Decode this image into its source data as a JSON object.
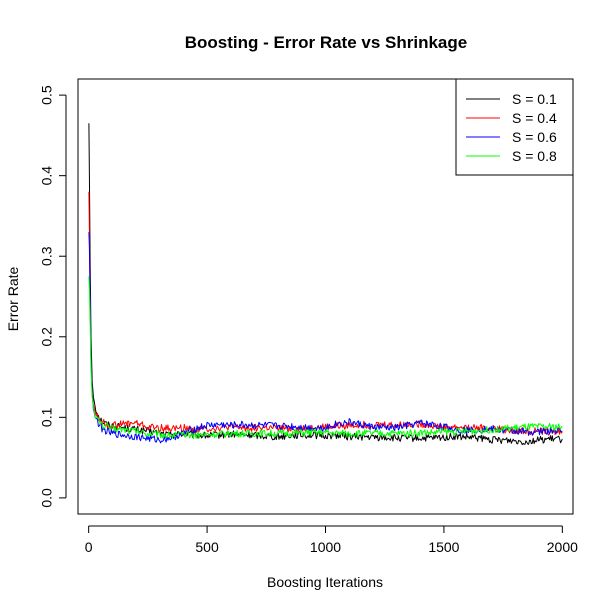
{
  "chart_data": {
    "type": "line",
    "title": "Boosting - Error Rate vs Shrinkage",
    "xlabel": "Boosting Iterations",
    "ylabel": "Error Rate",
    "xlim": [
      -45,
      2045
    ],
    "ylim": [
      -0.02,
      0.52
    ],
    "x_ticks": [
      0,
      500,
      1000,
      1500,
      2000
    ],
    "x_tick_labels": [
      "0",
      "500",
      "1000",
      "1500",
      "2000"
    ],
    "y_ticks": [
      0.0,
      0.1,
      0.2,
      0.3,
      0.4,
      0.5
    ],
    "y_tick_labels": [
      "0.0",
      "0.1",
      "0.2",
      "0.3",
      "0.4",
      "0.5"
    ],
    "grid": false,
    "legend_position": "top-right",
    "series": [
      {
        "name": "S = 0.1",
        "color": "#000000",
        "points": [
          [
            1,
            0.465
          ],
          [
            3,
            0.4
          ],
          [
            6,
            0.3
          ],
          [
            10,
            0.2
          ],
          [
            15,
            0.145
          ],
          [
            20,
            0.125
          ],
          [
            30,
            0.11
          ],
          [
            45,
            0.1
          ],
          [
            60,
            0.094
          ],
          [
            80,
            0.091
          ],
          [
            100,
            0.09
          ],
          [
            150,
            0.087
          ],
          [
            200,
            0.085
          ],
          [
            250,
            0.083
          ],
          [
            300,
            0.08
          ],
          [
            350,
            0.078
          ],
          [
            400,
            0.08
          ],
          [
            450,
            0.078
          ],
          [
            500,
            0.077
          ],
          [
            550,
            0.078
          ],
          [
            600,
            0.079
          ],
          [
            650,
            0.078
          ],
          [
            700,
            0.078
          ],
          [
            750,
            0.077
          ],
          [
            800,
            0.076
          ],
          [
            850,
            0.078
          ],
          [
            900,
            0.078
          ],
          [
            950,
            0.078
          ],
          [
            1000,
            0.077
          ],
          [
            1050,
            0.078
          ],
          [
            1100,
            0.076
          ],
          [
            1150,
            0.076
          ],
          [
            1200,
            0.075
          ],
          [
            1250,
            0.075
          ],
          [
            1300,
            0.074
          ],
          [
            1350,
            0.074
          ],
          [
            1400,
            0.074
          ],
          [
            1450,
            0.074
          ],
          [
            1500,
            0.075
          ],
          [
            1550,
            0.076
          ],
          [
            1600,
            0.075
          ],
          [
            1650,
            0.074
          ],
          [
            1700,
            0.072
          ],
          [
            1750,
            0.072
          ],
          [
            1800,
            0.071
          ],
          [
            1850,
            0.07
          ],
          [
            1900,
            0.072
          ],
          [
            1950,
            0.073
          ],
          [
            2000,
            0.073
          ]
        ]
      },
      {
        "name": "S = 0.4",
        "color": "#ff0000",
        "points": [
          [
            1,
            0.38
          ],
          [
            3,
            0.33
          ],
          [
            6,
            0.25
          ],
          [
            10,
            0.17
          ],
          [
            15,
            0.13
          ],
          [
            20,
            0.115
          ],
          [
            30,
            0.105
          ],
          [
            45,
            0.097
          ],
          [
            60,
            0.094
          ],
          [
            80,
            0.09
          ],
          [
            100,
            0.09
          ],
          [
            150,
            0.092
          ],
          [
            200,
            0.093
          ],
          [
            250,
            0.088
          ],
          [
            300,
            0.087
          ],
          [
            350,
            0.086
          ],
          [
            400,
            0.087
          ],
          [
            450,
            0.085
          ],
          [
            500,
            0.086
          ],
          [
            550,
            0.087
          ],
          [
            600,
            0.088
          ],
          [
            650,
            0.087
          ],
          [
            700,
            0.087
          ],
          [
            750,
            0.087
          ],
          [
            800,
            0.086
          ],
          [
            850,
            0.086
          ],
          [
            900,
            0.086
          ],
          [
            950,
            0.087
          ],
          [
            1000,
            0.088
          ],
          [
            1050,
            0.089
          ],
          [
            1100,
            0.09
          ],
          [
            1150,
            0.091
          ],
          [
            1200,
            0.09
          ],
          [
            1250,
            0.091
          ],
          [
            1300,
            0.09
          ],
          [
            1350,
            0.091
          ],
          [
            1400,
            0.092
          ],
          [
            1450,
            0.09
          ],
          [
            1500,
            0.088
          ],
          [
            1550,
            0.088
          ],
          [
            1600,
            0.087
          ],
          [
            1650,
            0.087
          ],
          [
            1700,
            0.086
          ],
          [
            1750,
            0.085
          ],
          [
            1800,
            0.084
          ],
          [
            1850,
            0.083
          ],
          [
            1900,
            0.083
          ],
          [
            1950,
            0.082
          ],
          [
            2000,
            0.082
          ]
        ]
      },
      {
        "name": "S = 0.6",
        "color": "#0000ff",
        "points": [
          [
            1,
            0.33
          ],
          [
            3,
            0.31
          ],
          [
            6,
            0.25
          ],
          [
            10,
            0.17
          ],
          [
            15,
            0.13
          ],
          [
            20,
            0.11
          ],
          [
            30,
            0.1
          ],
          [
            45,
            0.09
          ],
          [
            60,
            0.085
          ],
          [
            80,
            0.082
          ],
          [
            100,
            0.08
          ],
          [
            150,
            0.078
          ],
          [
            200,
            0.076
          ],
          [
            250,
            0.074
          ],
          [
            300,
            0.072
          ],
          [
            350,
            0.075
          ],
          [
            400,
            0.08
          ],
          [
            450,
            0.086
          ],
          [
            500,
            0.09
          ],
          [
            550,
            0.091
          ],
          [
            600,
            0.09
          ],
          [
            650,
            0.091
          ],
          [
            700,
            0.09
          ],
          [
            750,
            0.09
          ],
          [
            800,
            0.089
          ],
          [
            850,
            0.089
          ],
          [
            900,
            0.088
          ],
          [
            950,
            0.087
          ],
          [
            1000,
            0.087
          ],
          [
            1050,
            0.092
          ],
          [
            1100,
            0.094
          ],
          [
            1150,
            0.091
          ],
          [
            1200,
            0.088
          ],
          [
            1250,
            0.087
          ],
          [
            1300,
            0.087
          ],
          [
            1350,
            0.09
          ],
          [
            1400,
            0.093
          ],
          [
            1450,
            0.091
          ],
          [
            1500,
            0.088
          ],
          [
            1550,
            0.085
          ],
          [
            1600,
            0.084
          ],
          [
            1650,
            0.085
          ],
          [
            1700,
            0.085
          ],
          [
            1750,
            0.084
          ],
          [
            1800,
            0.083
          ],
          [
            1850,
            0.082
          ],
          [
            1900,
            0.082
          ],
          [
            1950,
            0.083
          ],
          [
            2000,
            0.083
          ]
        ]
      },
      {
        "name": "S = 0.8",
        "color": "#00ff00",
        "points": [
          [
            1,
            0.275
          ],
          [
            3,
            0.26
          ],
          [
            6,
            0.22
          ],
          [
            10,
            0.16
          ],
          [
            15,
            0.125
          ],
          [
            20,
            0.112
          ],
          [
            30,
            0.1
          ],
          [
            45,
            0.095
          ],
          [
            60,
            0.09
          ],
          [
            80,
            0.088
          ],
          [
            100,
            0.086
          ],
          [
            150,
            0.085
          ],
          [
            200,
            0.083
          ],
          [
            250,
            0.08
          ],
          [
            300,
            0.079
          ],
          [
            350,
            0.078
          ],
          [
            400,
            0.078
          ],
          [
            450,
            0.078
          ],
          [
            500,
            0.079
          ],
          [
            550,
            0.079
          ],
          [
            600,
            0.08
          ],
          [
            650,
            0.08
          ],
          [
            700,
            0.08
          ],
          [
            750,
            0.08
          ],
          [
            800,
            0.08
          ],
          [
            850,
            0.08
          ],
          [
            900,
            0.081
          ],
          [
            950,
            0.081
          ],
          [
            1000,
            0.081
          ],
          [
            1050,
            0.08
          ],
          [
            1100,
            0.08
          ],
          [
            1150,
            0.08
          ],
          [
            1200,
            0.08
          ],
          [
            1250,
            0.08
          ],
          [
            1300,
            0.08
          ],
          [
            1350,
            0.08
          ],
          [
            1400,
            0.081
          ],
          [
            1450,
            0.081
          ],
          [
            1500,
            0.082
          ],
          [
            1550,
            0.082
          ],
          [
            1600,
            0.083
          ],
          [
            1650,
            0.084
          ],
          [
            1700,
            0.085
          ],
          [
            1750,
            0.086
          ],
          [
            1800,
            0.087
          ],
          [
            1850,
            0.088
          ],
          [
            1900,
            0.088
          ],
          [
            1950,
            0.088
          ],
          [
            2000,
            0.088
          ]
        ]
      }
    ]
  }
}
